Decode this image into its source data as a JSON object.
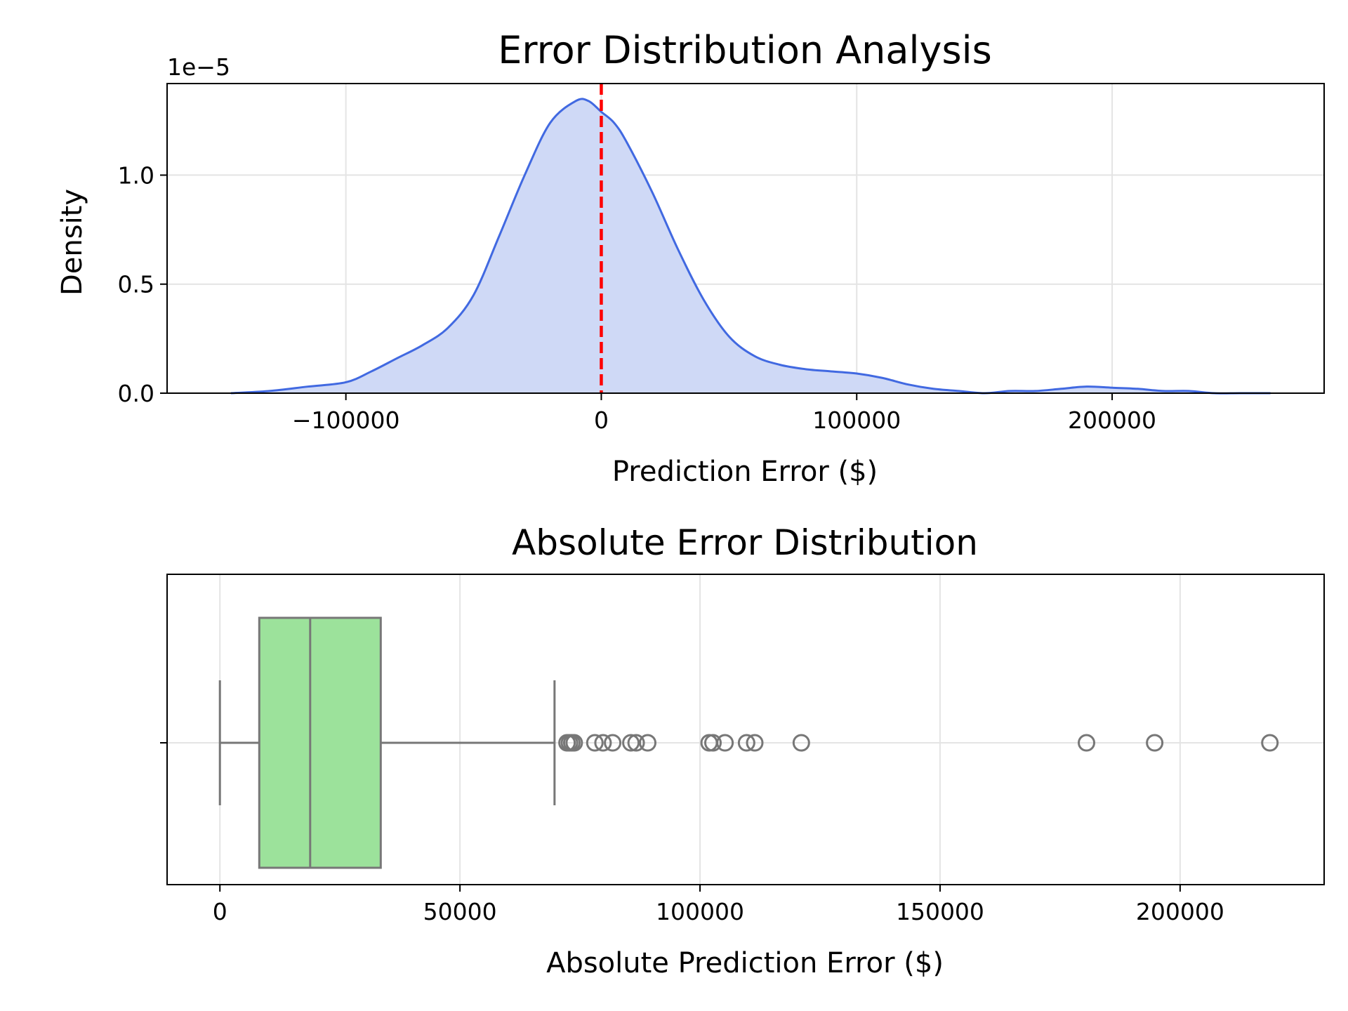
{
  "chart_data": [
    {
      "type": "area",
      "title": "Error Distribution Analysis",
      "xlabel": "Prediction Error ($)",
      "ylabel": "Density",
      "y_offset_label": "1e−5",
      "y_scale_factor": 1e-05,
      "xlim": [
        -170000,
        283000
      ],
      "ylim": [
        0,
        1.42
      ],
      "xticks": [
        -100000,
        0,
        100000,
        200000
      ],
      "xtick_labels": [
        "−100000",
        "0",
        "100000",
        "200000"
      ],
      "yticks": [
        0,
        0.5,
        1.0
      ],
      "ytick_labels": [
        "0.0",
        "0.5",
        "1.0"
      ],
      "grid": true,
      "line_color": "#4169e1",
      "fill_color": "#cfd9f6",
      "reference_line": {
        "x": 0,
        "color": "#ff0000",
        "style": "dashed"
      },
      "series": [
        {
          "x": [
            -145000,
            -130000,
            -115000,
            -100000,
            -90000,
            -80000,
            -70000,
            -60000,
            -50000,
            -40000,
            -30000,
            -20000,
            -10000,
            -5000,
            0,
            5000,
            10000,
            20000,
            30000,
            40000,
            50000,
            60000,
            70000,
            80000,
            90000,
            100000,
            110000,
            120000,
            130000,
            140000,
            150000,
            160000,
            170000,
            180000,
            190000,
            200000,
            210000,
            220000,
            230000,
            240000,
            250000,
            262000
          ],
          "y": [
            0.0,
            0.01,
            0.03,
            0.05,
            0.1,
            0.16,
            0.22,
            0.3,
            0.45,
            0.72,
            1.0,
            1.24,
            1.34,
            1.34,
            1.29,
            1.24,
            1.15,
            0.92,
            0.66,
            0.43,
            0.26,
            0.17,
            0.13,
            0.11,
            0.1,
            0.09,
            0.07,
            0.04,
            0.02,
            0.01,
            0.0,
            0.01,
            0.01,
            0.02,
            0.03,
            0.025,
            0.02,
            0.01,
            0.01,
            0.0,
            0.0,
            0.0
          ]
        }
      ]
    },
    {
      "type": "box",
      "title": "Absolute Error Distribution",
      "xlabel": "Absolute Prediction Error ($)",
      "xlim": [
        -11000,
        230000
      ],
      "xticks": [
        0,
        50000,
        100000,
        150000,
        200000
      ],
      "xtick_labels": [
        "0",
        "50000",
        "100000",
        "150000",
        "200000"
      ],
      "grid": true,
      "box_color": "#9ce29b",
      "edge_color": "#777777",
      "stats": {
        "whisker_low": 0,
        "q1": 8200,
        "median": 18800,
        "q3": 33500,
        "whisker_high": 69700
      },
      "outliers": [
        72300,
        72800,
        73300,
        73800,
        78100,
        79800,
        81800,
        85600,
        86700,
        89100,
        101900,
        102700,
        105200,
        109700,
        111400,
        121100,
        180500,
        194700,
        218700
      ]
    }
  ]
}
